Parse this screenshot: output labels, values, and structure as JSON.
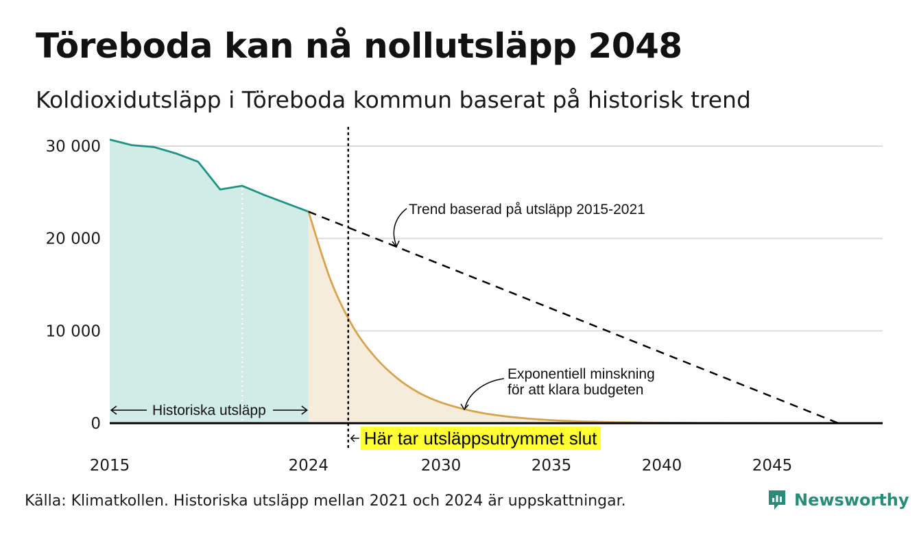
{
  "header": {
    "title": "Töreboda kan nå nollutsläpp 2048",
    "subtitle": "Koldioxidutsläpp i Töreboda kommun baserat på historisk trend"
  },
  "footer": {
    "source": "Källa: Klimatkollen. Historiska utsläpp mellan 2021 och 2024 är uppskattningar.",
    "brand": "Newsworthy"
  },
  "chart_data": {
    "type": "area",
    "title": "Töreboda kan nå nollutsläpp 2048",
    "subtitle": "Koldioxidutsläpp i Töreboda kommun baserat på historisk trend",
    "xlim": [
      2015,
      2050
    ],
    "ylim": [
      0,
      32000
    ],
    "x_ticks": [
      2015,
      2024,
      2030,
      2035,
      2040,
      2045
    ],
    "x_tick_labels": [
      "2015",
      "2024",
      "2030",
      "2035",
      "2040",
      "2045"
    ],
    "y_ticks": [
      0,
      10000,
      20000,
      30000
    ],
    "y_tick_labels": [
      "0",
      "10 000",
      "20 000",
      "30 000"
    ],
    "grid": "horizontal",
    "series": [
      {
        "name": "Historiska utsläpp",
        "color": "#1f9185",
        "fill": "#d1ebe6",
        "x": [
          2015,
          2016,
          2017,
          2018,
          2019,
          2020,
          2021,
          2022,
          2023,
          2024
        ],
        "y": [
          30700,
          30100,
          29900,
          29200,
          28300,
          25300,
          25700,
          24700,
          23800,
          22900
        ]
      },
      {
        "name": "Exponentiell minskning för att klara budgeten",
        "color": "#d6a44e",
        "fill": "#f5ecdb",
        "x": [
          2024,
          2025,
          2026,
          2027,
          2028,
          2029,
          2030,
          2031,
          2032,
          2033,
          2034,
          2035,
          2036,
          2037,
          2038,
          2039,
          2040,
          2042,
          2044,
          2046,
          2048,
          2050
        ],
        "y": [
          22900,
          15500,
          10500,
          7200,
          4900,
          3300,
          2250,
          1550,
          1050,
          720,
          490,
          330,
          225,
          155,
          105,
          72,
          50,
          25,
          12,
          6,
          3,
          0
        ]
      },
      {
        "name": "Trend baserad på utsläpp 2015-2021",
        "color": "#000000",
        "style": "dashed",
        "x": [
          2024,
          2048
        ],
        "y": [
          22900,
          0
        ]
      }
    ],
    "annotations": {
      "trend": "Trend baserad på utsläpp 2015-2021",
      "exp_line1": "Exponentiell minskning",
      "exp_line2": "för att klara budgeten",
      "historic": "Historiska utsläpp",
      "budget_end": "Här tar utsläppsutrymmet slut",
      "budget_end_year": 2025.8
    }
  }
}
